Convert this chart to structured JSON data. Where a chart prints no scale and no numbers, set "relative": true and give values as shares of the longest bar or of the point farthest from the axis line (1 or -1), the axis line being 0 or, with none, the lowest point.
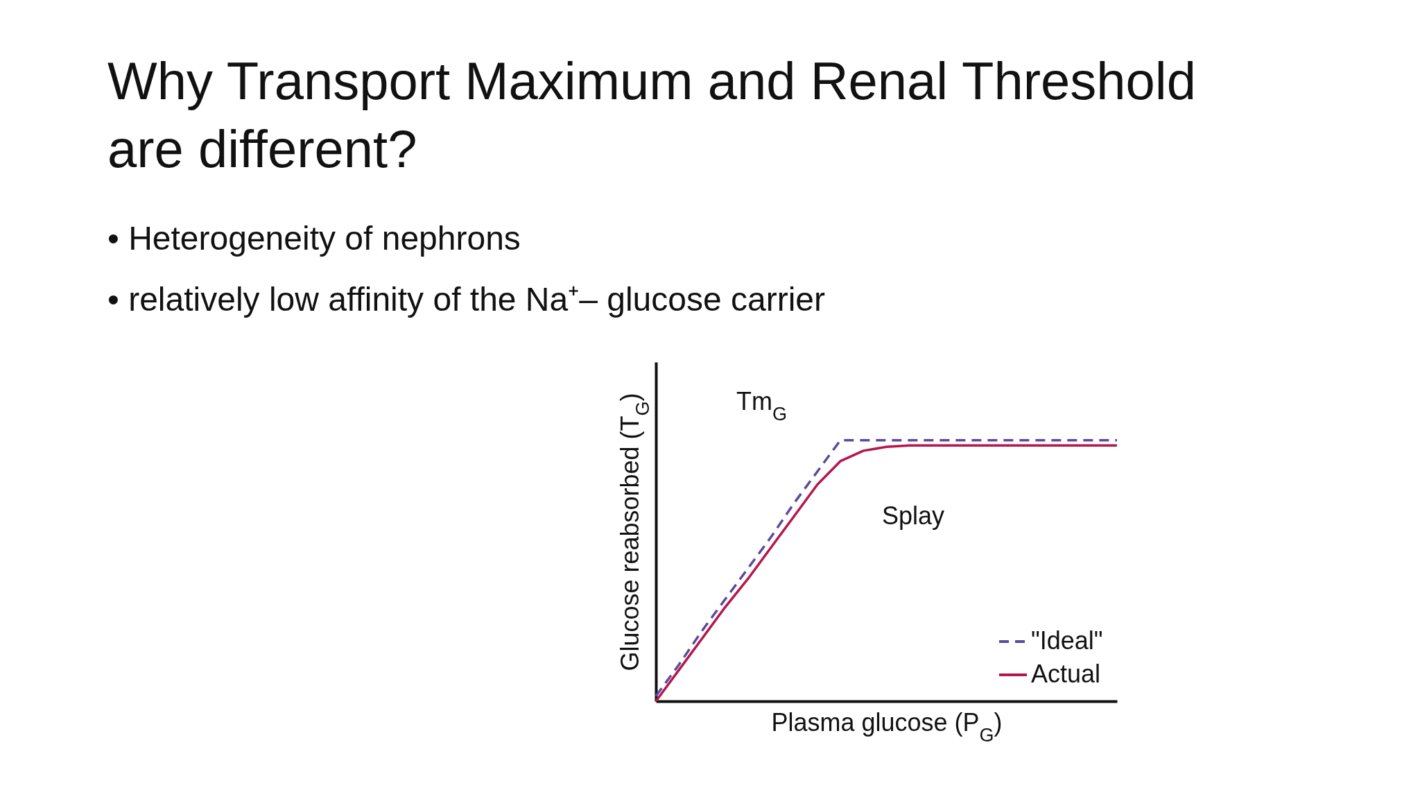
{
  "chart_data": {
    "type": "line",
    "title": "Why Transport Maximum and Renal Threshold are different?",
    "annotations": [
      "• Heterogeneity of nephrons",
      "• relatively low affinity of the Na⁺– glucose carrier",
      "Tm$_{G}$",
      "Splay"
    ],
    "xlabel": "Plasma glucose (P$_{G}$)",
    "ylabel": "Glucose reabsorbed (T$_{G}$)",
    "relative": true,
    "grid": false,
    "legend": "bottom right",
    "marker": "none",
    "categories": [
      null,
      null,
      null,
      null,
      null,
      null,
      null,
      null,
      null,
      null,
      null,
      null,
      null,
      null,
      null,
      null,
      null,
      null,
      null,
      null,
      null
    ],
    "series": [
      {
        "name": "\"Ideal\"",
        "color": "#5b4a9b",
        "line_style": "dashed",
        "values": [
          0.02,
          0.14,
          0.27,
          0.39,
          0.51,
          0.63,
          0.76,
          0.88,
          1.0,
          1.0,
          1.0,
          1.0,
          1.0,
          1.0,
          1.0,
          1.0,
          1.0,
          1.0,
          1.0,
          1.0,
          1.0
        ]
      },
      {
        "name": "Actual",
        "color": "#b5164b",
        "line_style": "solid",
        "values": [
          0,
          0.12,
          0.24,
          0.36,
          0.47,
          0.59,
          0.71,
          0.83,
          0.92,
          0.96,
          0.975,
          0.98,
          0.98,
          0.98,
          0.98,
          0.98,
          0.98,
          0.98,
          0.98,
          0.98,
          0.98
        ]
      }
    ]
  }
}
